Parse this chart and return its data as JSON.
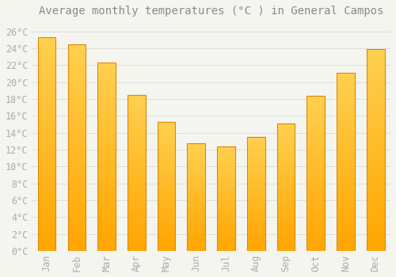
{
  "title": "Average monthly temperatures (°C ) in General Campos",
  "months": [
    "Jan",
    "Feb",
    "Mar",
    "Apr",
    "May",
    "Jun",
    "Jul",
    "Aug",
    "Sep",
    "Oct",
    "Nov",
    "Dec"
  ],
  "values": [
    25.3,
    24.5,
    22.3,
    18.5,
    15.3,
    12.7,
    12.4,
    13.5,
    15.1,
    18.4,
    21.1,
    23.9
  ],
  "bar_color_top": "#FFD050",
  "bar_color_bottom": "#FFA500",
  "bar_edge_color": "#E08800",
  "background_color": "#F5F5F0",
  "plot_bg_color": "#F5F5F0",
  "grid_color": "#DDDDDD",
  "title_color": "#888888",
  "tick_label_color": "#AAAAAA",
  "ylim": [
    0,
    27
  ],
  "yticks": [
    0,
    2,
    4,
    6,
    8,
    10,
    12,
    14,
    16,
    18,
    20,
    22,
    24,
    26
  ],
  "title_fontsize": 10,
  "tick_fontsize": 8.5,
  "bar_width": 0.6
}
